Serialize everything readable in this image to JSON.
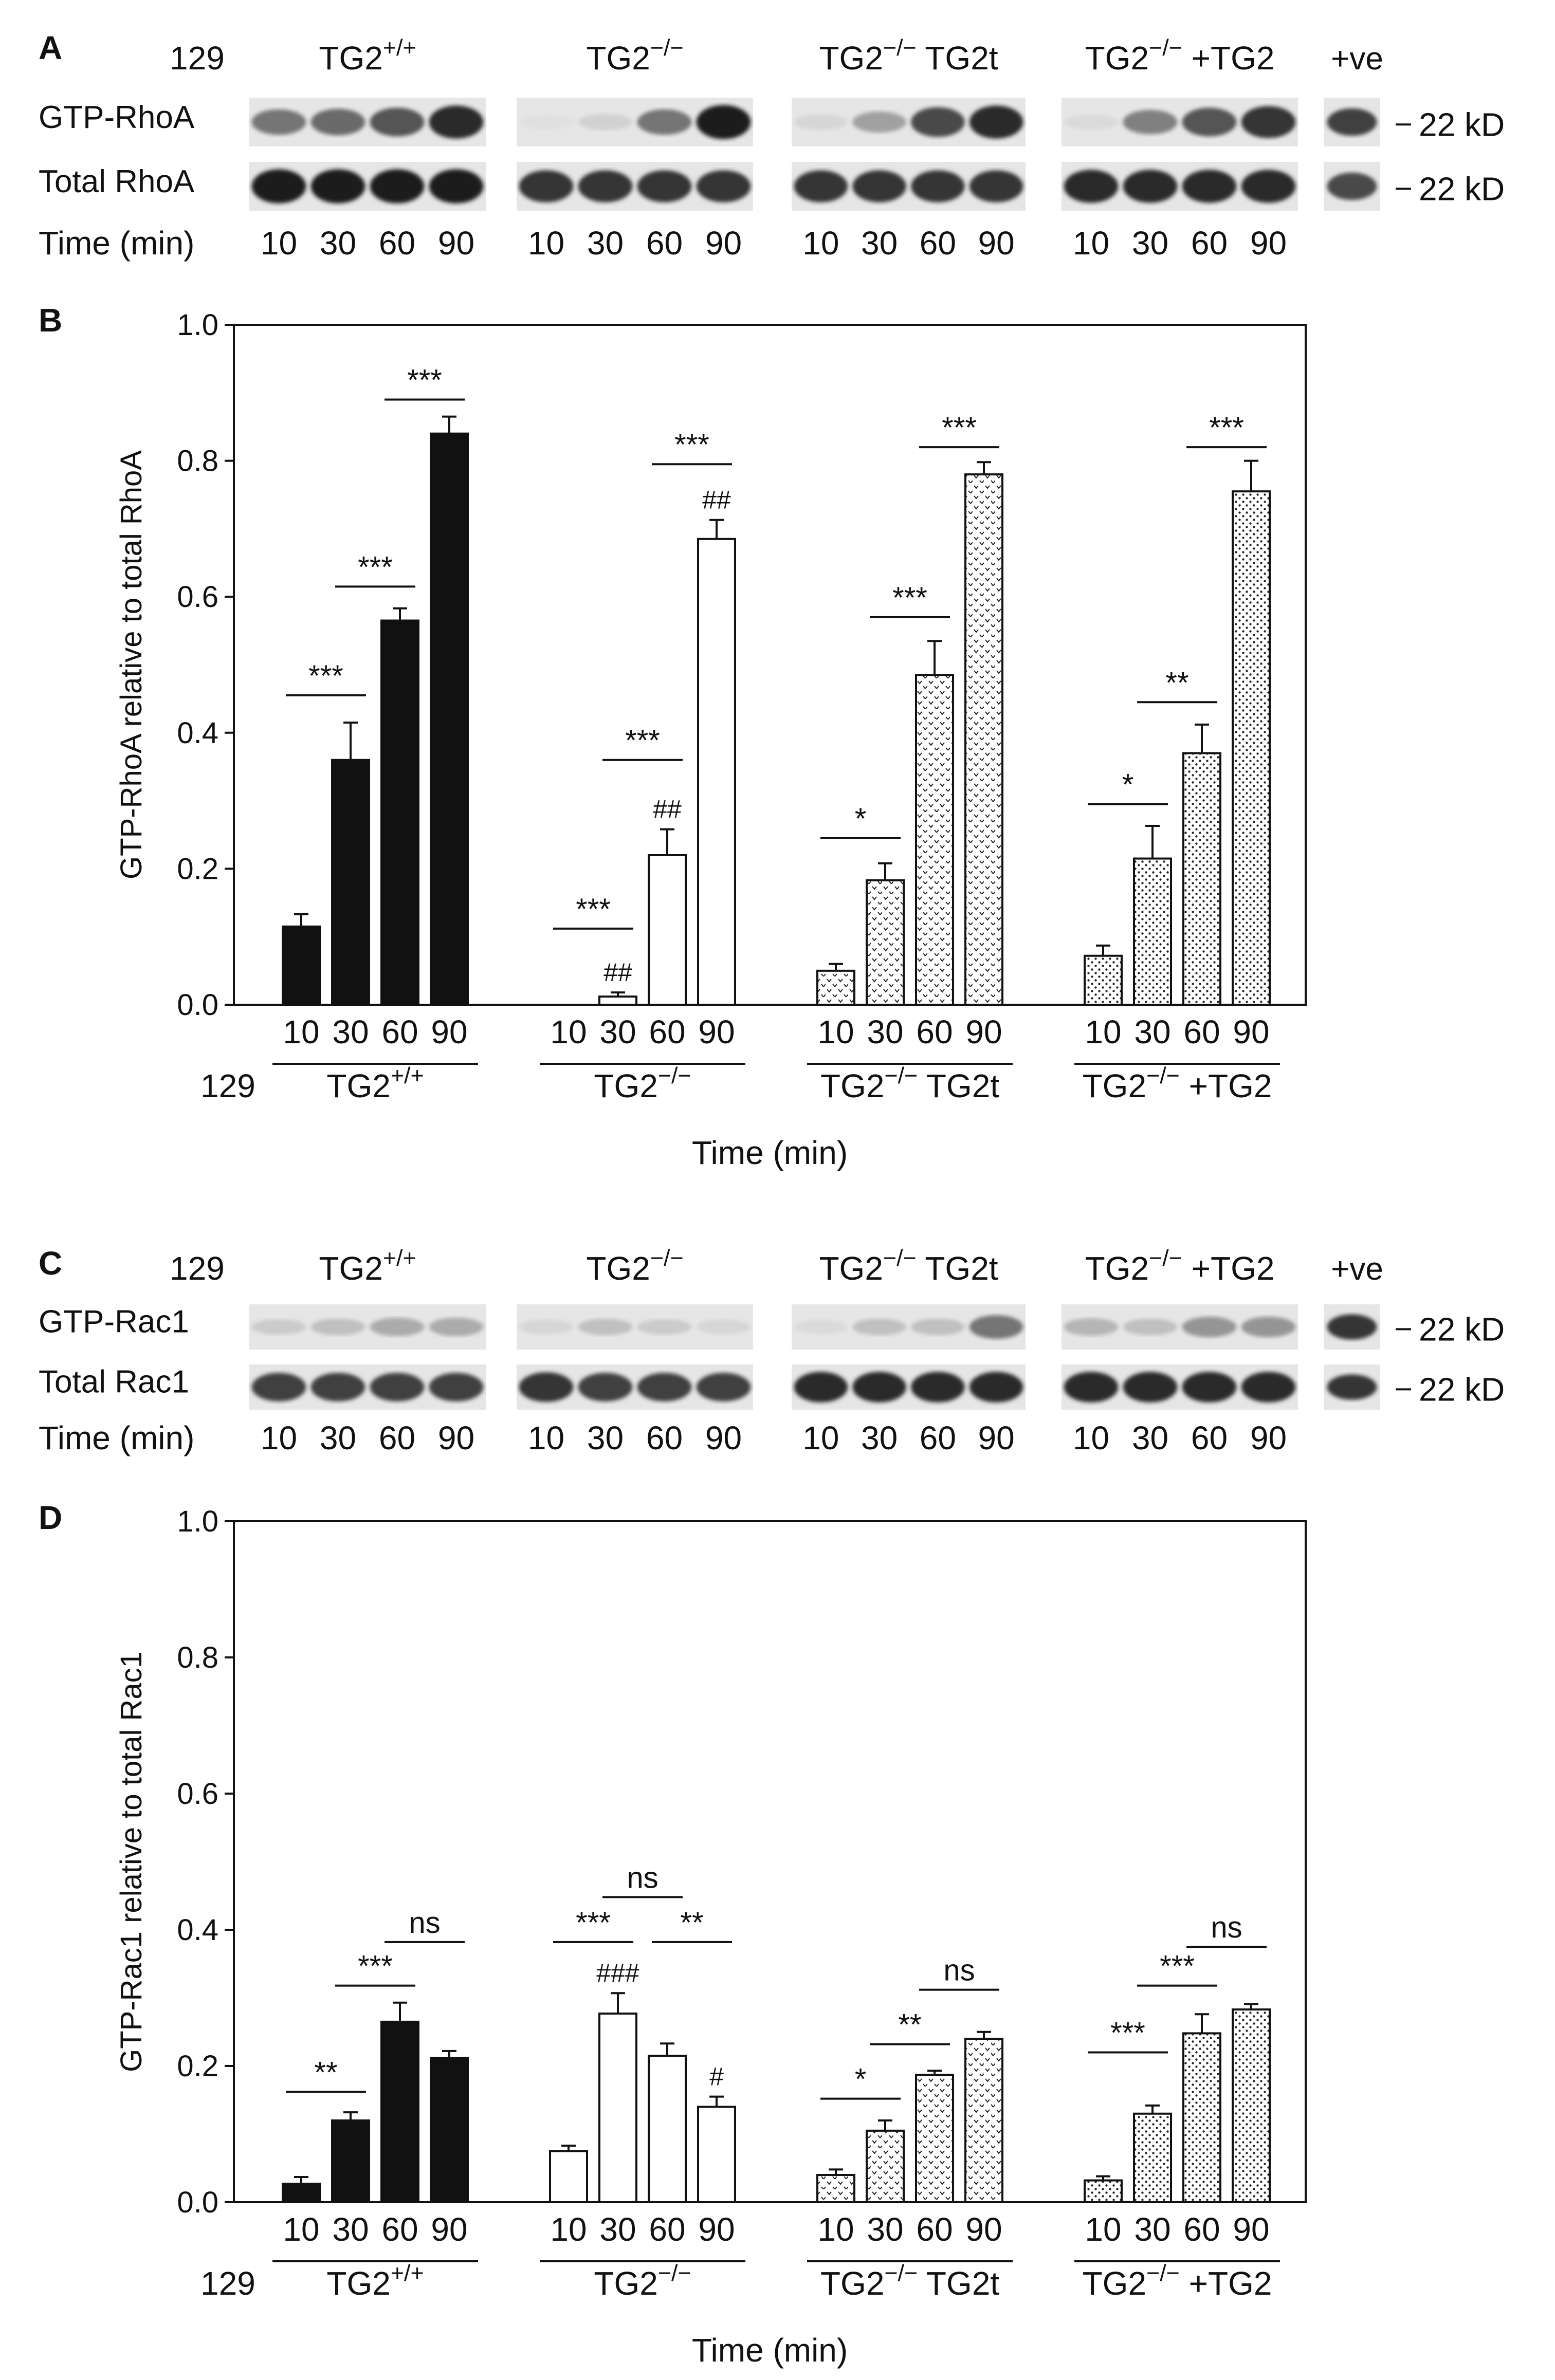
{
  "figure": {
    "panels": {
      "A": "A",
      "B": "B",
      "C": "C",
      "D": "D"
    }
  },
  "blots": [
    {
      "panel": "A",
      "strain": "129",
      "groups": [
        {
          "base": "TG2",
          "sup": "+/+",
          "rest": ""
        },
        {
          "base": "TG2",
          "sup": "−/−",
          "rest": ""
        },
        {
          "base": "TG2",
          "sup": "−/−",
          "rest": " TG2t"
        },
        {
          "base": "TG2",
          "sup": "−/−",
          "rest": " +TG2"
        }
      ],
      "positive_control": "+ve",
      "rows": [
        {
          "label": "GTP-RhoA",
          "marker": "22 kD",
          "band_intensity": [
            [
              0.55,
              0.6,
              0.7,
              0.9
            ],
            [
              0.05,
              0.12,
              0.55,
              0.95
            ],
            [
              0.1,
              0.35,
              0.75,
              0.9
            ],
            [
              0.08,
              0.5,
              0.7,
              0.85
            ]
          ],
          "positive_intensity": 0.8
        },
        {
          "label": "Total RhoA",
          "marker": "22 kD",
          "band_intensity": [
            [
              0.95,
              0.95,
              0.95,
              0.95
            ],
            [
              0.85,
              0.85,
              0.85,
              0.85
            ],
            [
              0.85,
              0.85,
              0.85,
              0.85
            ],
            [
              0.9,
              0.9,
              0.9,
              0.9
            ]
          ],
          "positive_intensity": 0.75
        }
      ],
      "time_label": "Time (min)",
      "times": [
        "10",
        "30",
        "60",
        "90"
      ]
    },
    {
      "panel": "C",
      "strain": "129",
      "groups": [
        {
          "base": "TG2",
          "sup": "+/+",
          "rest": ""
        },
        {
          "base": "TG2",
          "sup": "−/−",
          "rest": ""
        },
        {
          "base": "TG2",
          "sup": "−/−",
          "rest": " TG2t"
        },
        {
          "base": "TG2",
          "sup": "−/−",
          "rest": " +TG2"
        }
      ],
      "positive_control": "+ve",
      "rows": [
        {
          "label": "GTP-Rac1",
          "marker": "22 kD",
          "band_intensity": [
            [
              0.15,
              0.2,
              0.3,
              0.3
            ],
            [
              0.1,
              0.2,
              0.15,
              0.1
            ],
            [
              0.08,
              0.2,
              0.2,
              0.55
            ],
            [
              0.25,
              0.2,
              0.4,
              0.4
            ]
          ],
          "positive_intensity": 0.85
        },
        {
          "label": "Total Rac1",
          "marker": "22 kD",
          "band_intensity": [
            [
              0.8,
              0.8,
              0.8,
              0.8
            ],
            [
              0.85,
              0.8,
              0.8,
              0.8
            ],
            [
              0.9,
              0.9,
              0.9,
              0.9
            ],
            [
              0.9,
              0.9,
              0.9,
              0.9
            ]
          ],
          "positive_intensity": 0.85
        }
      ],
      "time_label": "Time (min)",
      "times": [
        "10",
        "30",
        "60",
        "90"
      ]
    }
  ],
  "chart_data": [
    {
      "panel": "B",
      "type": "bar",
      "ylabel": "GTP-RhoA relative to total RhoA",
      "xlabel": "Time (min)",
      "ylim": [
        0,
        1.0
      ],
      "yticks": [
        "0.0",
        "0.2",
        "0.4",
        "0.6",
        "0.8",
        "1.0"
      ],
      "categories": [
        "10",
        "30",
        "60",
        "90"
      ],
      "strain_label": "129",
      "series": [
        {
          "name": "TG2+/+",
          "base": "TG2",
          "sup": "+/+",
          "rest": "",
          "fill": "solid",
          "values": [
            0.115,
            0.36,
            0.565,
            0.84
          ],
          "errors": [
            0.018,
            0.055,
            0.018,
            0.025
          ],
          "marks": [
            "",
            "",
            "",
            ""
          ]
        },
        {
          "name": "TG2−/−",
          "base": "TG2",
          "sup": "−/−",
          "rest": "",
          "fill": "open",
          "values": [
            0.0,
            0.012,
            0.22,
            0.685
          ],
          "errors": [
            0.0,
            0.006,
            0.038,
            0.028
          ],
          "marks": [
            "",
            "##",
            "##",
            "##"
          ]
        },
        {
          "name": "TG2−/− TG2t",
          "base": "TG2",
          "sup": "−/−",
          "rest": " TG2t",
          "fill": "chevron",
          "values": [
            0.05,
            0.183,
            0.485,
            0.78
          ],
          "errors": [
            0.01,
            0.025,
            0.05,
            0.018
          ],
          "marks": [
            "",
            "",
            "",
            ""
          ]
        },
        {
          "name": "TG2−/− +TG2",
          "base": "TG2",
          "sup": "−/−",
          "rest": " +TG2",
          "fill": "dots",
          "values": [
            0.072,
            0.215,
            0.37,
            0.755
          ],
          "errors": [
            0.015,
            0.048,
            0.042,
            0.045
          ],
          "marks": [
            "",
            "",
            "",
            ""
          ]
        }
      ],
      "significance": [
        {
          "group": 0,
          "from": 0,
          "to": 1,
          "label": "***",
          "y": 0.455
        },
        {
          "group": 0,
          "from": 1,
          "to": 2,
          "label": "***",
          "y": 0.615
        },
        {
          "group": 0,
          "from": 2,
          "to": 3,
          "label": "***",
          "y": 0.89
        },
        {
          "group": 1,
          "from": 0,
          "to": 1,
          "label": "***",
          "y": 0.112
        },
        {
          "group": 1,
          "from": 1,
          "to": 2,
          "label": "***",
          "y": 0.36
        },
        {
          "group": 1,
          "from": 2,
          "to": 3,
          "label": "***",
          "y": 0.795
        },
        {
          "group": 2,
          "from": 0,
          "to": 1,
          "label": "*",
          "y": 0.245
        },
        {
          "group": 2,
          "from": 1,
          "to": 2,
          "label": "***",
          "y": 0.57
        },
        {
          "group": 2,
          "from": 2,
          "to": 3,
          "label": "***",
          "y": 0.82
        },
        {
          "group": 3,
          "from": 0,
          "to": 1,
          "label": "*",
          "y": 0.295
        },
        {
          "group": 3,
          "from": 1,
          "to": 2,
          "label": "**",
          "y": 0.445
        },
        {
          "group": 3,
          "from": 2,
          "to": 3,
          "label": "***",
          "y": 0.82
        }
      ]
    },
    {
      "panel": "D",
      "type": "bar",
      "ylabel": "GTP-Rac1 relative to total Rac1",
      "xlabel": "Time (min)",
      "ylim": [
        0,
        1.0
      ],
      "yticks": [
        "0.0",
        "0.2",
        "0.4",
        "0.6",
        "0.8",
        "1.0"
      ],
      "categories": [
        "10",
        "30",
        "60",
        "90"
      ],
      "strain_label": "129",
      "series": [
        {
          "name": "TG2+/+",
          "base": "TG2",
          "sup": "+/+",
          "rest": "",
          "fill": "solid",
          "values": [
            0.027,
            0.12,
            0.265,
            0.212
          ],
          "errors": [
            0.01,
            0.012,
            0.028,
            0.01
          ],
          "marks": [
            "",
            "",
            "",
            ""
          ]
        },
        {
          "name": "TG2−/−",
          "base": "TG2",
          "sup": "−/−",
          "rest": "",
          "fill": "open",
          "values": [
            0.075,
            0.277,
            0.215,
            0.14
          ],
          "errors": [
            0.008,
            0.03,
            0.018,
            0.015
          ],
          "marks": [
            "",
            "###",
            "",
            "#"
          ]
        },
        {
          "name": "TG2−/− TG2t",
          "base": "TG2",
          "sup": "−/−",
          "rest": " TG2t",
          "fill": "chevron",
          "values": [
            0.04,
            0.105,
            0.187,
            0.24
          ],
          "errors": [
            0.008,
            0.015,
            0.006,
            0.01
          ],
          "marks": [
            "",
            "",
            "",
            ""
          ]
        },
        {
          "name": "TG2−/− +TG2",
          "base": "TG2",
          "sup": "−/−",
          "rest": " +TG2",
          "fill": "dots",
          "values": [
            0.032,
            0.13,
            0.248,
            0.283
          ],
          "errors": [
            0.006,
            0.012,
            0.028,
            0.008
          ],
          "marks": [
            "",
            "",
            "",
            ""
          ]
        }
      ],
      "significance": [
        {
          "group": 0,
          "from": 0,
          "to": 1,
          "label": "**",
          "y": 0.162
        },
        {
          "group": 0,
          "from": 1,
          "to": 2,
          "label": "***",
          "y": 0.318
        },
        {
          "group": 0,
          "from": 2,
          "to": 3,
          "label": "ns",
          "y": 0.382
        },
        {
          "group": 1,
          "from": 0,
          "to": 1,
          "label": "***",
          "y": 0.382
        },
        {
          "group": 1,
          "from": 1,
          "to": 2,
          "label": "ns",
          "y": 0.448
        },
        {
          "group": 1,
          "from": 2,
          "to": 3,
          "label": "**",
          "y": 0.382
        },
        {
          "group": 2,
          "from": 0,
          "to": 1,
          "label": "*",
          "y": 0.152
        },
        {
          "group": 2,
          "from": 1,
          "to": 2,
          "label": "**",
          "y": 0.232
        },
        {
          "group": 2,
          "from": 2,
          "to": 3,
          "label": "ns",
          "y": 0.312
        },
        {
          "group": 3,
          "from": 0,
          "to": 1,
          "label": "***",
          "y": 0.22
        },
        {
          "group": 3,
          "from": 1,
          "to": 2,
          "label": "***",
          "y": 0.318
        },
        {
          "group": 3,
          "from": 2,
          "to": 3,
          "label": "ns",
          "y": 0.375
        }
      ]
    }
  ]
}
